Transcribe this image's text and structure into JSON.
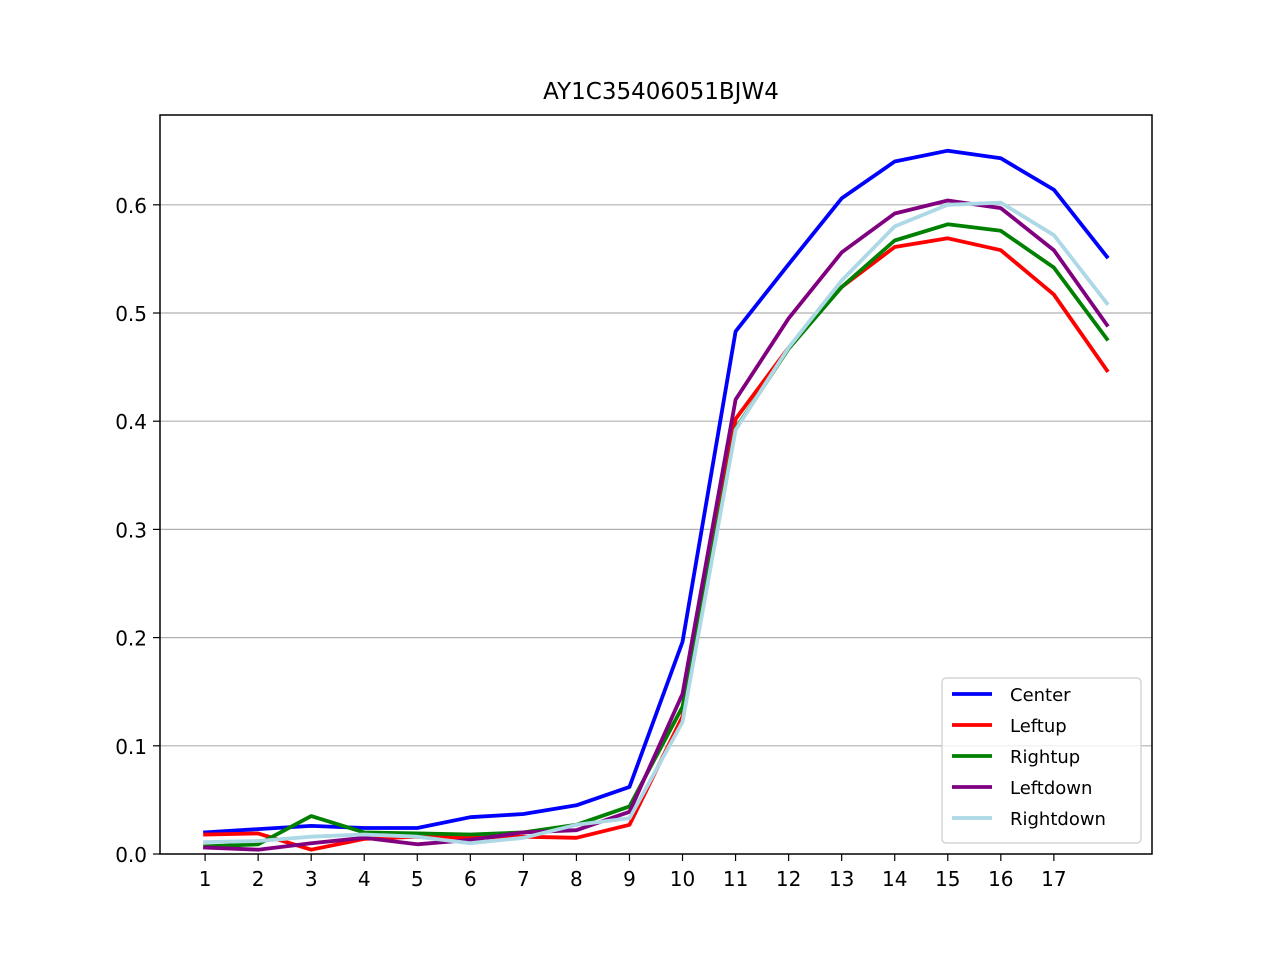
{
  "chart_data": {
    "type": "line",
    "title": "AY1C35406051BJW4",
    "xlabel": "",
    "ylabel": "",
    "x": [
      1,
      2,
      3,
      4,
      5,
      6,
      7,
      8,
      9,
      10,
      11,
      12,
      13,
      14,
      15,
      16,
      17,
      18
    ],
    "xticks": [
      "1",
      "2",
      "3",
      "4",
      "5",
      "6",
      "7",
      "8",
      "9",
      "10",
      "11",
      "12",
      "13",
      "14",
      "15",
      "16",
      "17"
    ],
    "yticks": [
      "0.0",
      "0.1",
      "0.2",
      "0.3",
      "0.4",
      "0.5",
      "0.6"
    ],
    "ylim": [
      0,
      0.683
    ],
    "xlim": [
      0.15,
      18.85
    ],
    "grid": "horizontal",
    "legend_position": "lower-right",
    "series": [
      {
        "name": "Center",
        "color": "#0000ff",
        "values": [
          0.02,
          0.023,
          0.026,
          0.024,
          0.024,
          0.034,
          0.037,
          0.045,
          0.062,
          0.196,
          0.483,
          0.545,
          0.606,
          0.64,
          0.65,
          0.643,
          0.614,
          0.552
        ]
      },
      {
        "name": "Leftup",
        "color": "#ff0000",
        "values": [
          0.018,
          0.019,
          0.004,
          0.014,
          0.016,
          0.015,
          0.016,
          0.015,
          0.027,
          0.127,
          0.402,
          0.468,
          0.524,
          0.561,
          0.569,
          0.558,
          0.517,
          0.447
        ]
      },
      {
        "name": "Rightup",
        "color": "#008000",
        "values": [
          0.007,
          0.009,
          0.035,
          0.02,
          0.019,
          0.018,
          0.02,
          0.027,
          0.044,
          0.136,
          0.393,
          0.467,
          0.524,
          0.567,
          0.582,
          0.576,
          0.542,
          0.476
        ]
      },
      {
        "name": "Leftdown",
        "color": "#800080",
        "values": [
          0.006,
          0.004,
          0.01,
          0.015,
          0.009,
          0.013,
          0.02,
          0.022,
          0.039,
          0.148,
          0.42,
          0.495,
          0.556,
          0.592,
          0.604,
          0.597,
          0.558,
          0.489
        ]
      },
      {
        "name": "Rightdown",
        "color": "#add8e6",
        "values": [
          0.011,
          0.012,
          0.016,
          0.018,
          0.016,
          0.01,
          0.015,
          0.027,
          0.033,
          0.122,
          0.392,
          0.468,
          0.53,
          0.58,
          0.6,
          0.602,
          0.572,
          0.509
        ]
      }
    ]
  }
}
